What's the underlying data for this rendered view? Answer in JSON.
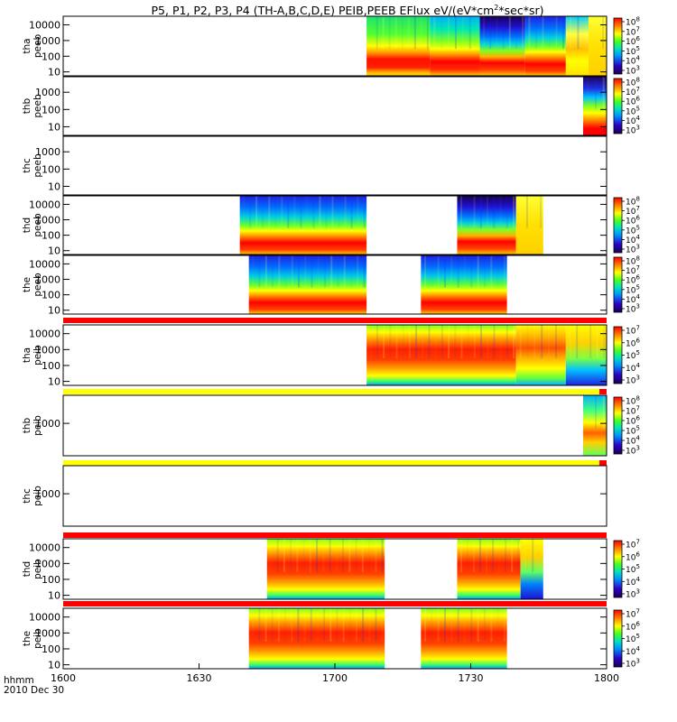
{
  "chart_data": {
    "type": "heatmap",
    "title": "P5, P1, P2, P3, P4 (TH-A,B,C,D,E) PEIB,PEEB EFlux eV/(eV*cm",
    "title_sup": "2",
    "title_end": "*sec*sr)",
    "x_label": "hhmm",
    "date_label": "2010 Dec 30",
    "x_ticks": [
      "1600",
      "1630",
      "1700",
      "1730",
      "1800"
    ],
    "x_tick_minutes": [
      0,
      30,
      60,
      90,
      120
    ],
    "x_range_minutes": [
      0,
      120
    ],
    "panels": [
      {
        "probe": "tha",
        "instrument": "peeb",
        "y_ticks": [
          "10000",
          "1000",
          "100",
          "10"
        ],
        "y_tick_values": [
          10000,
          1000,
          100,
          10
        ],
        "y_log_range": [
          0.75,
          4.55
        ],
        "colorbar": true,
        "cb_labels": [
          "8",
          "7",
          "6",
          "5",
          "4",
          "3"
        ],
        "status_bar": null,
        "blocks": [
          {
            "start": 67,
            "end": 81,
            "kind": "e_quiet"
          },
          {
            "start": 81,
            "end": 92,
            "kind": "e_green"
          },
          {
            "start": 92,
            "end": 102,
            "kind": "e_dense"
          },
          {
            "start": 102,
            "end": 111,
            "kind": "e_bluetop"
          },
          {
            "start": 111,
            "end": 116,
            "kind": "e_bright"
          },
          {
            "start": 116,
            "end": 120,
            "kind": "e_yellow"
          }
        ]
      },
      {
        "probe": "thb",
        "instrument": "peeb",
        "y_ticks": [
          "1000",
          "100",
          "10"
        ],
        "y_tick_values": [
          1000,
          100,
          10
        ],
        "y_log_range": [
          0.5,
          3.9
        ],
        "colorbar": true,
        "cb_labels": [
          "8",
          "7",
          "6",
          "5",
          "4",
          "3"
        ],
        "status_bar": null,
        "blocks": [
          {
            "start": 172,
            "end": 178,
            "kind": "e_edge"
          }
        ]
      },
      {
        "probe": "thc",
        "instrument": "peeb",
        "y_ticks": [
          "1000",
          "100",
          "10"
        ],
        "y_tick_values": [
          1000,
          100,
          10
        ],
        "y_log_range": [
          0.5,
          3.9
        ],
        "colorbar": false,
        "cb_labels": [],
        "status_bar": null,
        "blocks": []
      },
      {
        "probe": "thd",
        "instrument": "peeb",
        "y_ticks": [
          "10000",
          "1000",
          "100",
          "10"
        ],
        "y_tick_values": [
          10000,
          1000,
          100,
          10
        ],
        "y_log_range": [
          0.75,
          4.55
        ],
        "colorbar": true,
        "cb_labels": [
          "8",
          "7",
          "6",
          "5",
          "4",
          "3"
        ],
        "status_bar": null,
        "blocks": [
          {
            "start": 39,
            "end": 67,
            "kind": "e_bluetop"
          },
          {
            "start": 87,
            "end": 100,
            "kind": "e_dense"
          },
          {
            "start": 100,
            "end": 106,
            "kind": "e_yellow"
          }
        ]
      },
      {
        "probe": "the",
        "instrument": "peeb",
        "y_ticks": [
          "10000",
          "1000",
          "100",
          "10"
        ],
        "y_tick_values": [
          10000,
          1000,
          100,
          10
        ],
        "y_log_range": [
          0.75,
          4.55
        ],
        "colorbar": true,
        "cb_labels": [
          "8",
          "7",
          "6",
          "5",
          "4",
          "3"
        ],
        "status_bar": null,
        "blocks": [
          {
            "start": 41,
            "end": 67,
            "kind": "e_bluetop"
          },
          {
            "start": 79,
            "end": 98,
            "kind": "e_bluetop"
          }
        ]
      },
      {
        "probe": "tha",
        "instrument": "peib",
        "y_ticks": [
          "10000",
          "1000",
          "100",
          "10"
        ],
        "y_tick_values": [
          10000,
          1000,
          100,
          10
        ],
        "y_log_range": [
          0.75,
          4.55
        ],
        "colorbar": true,
        "cb_labels": [
          "7",
          "6",
          "5",
          "4",
          "3"
        ],
        "status_bar": "red",
        "blocks": [
          {
            "start": 67,
            "end": 100,
            "kind": "i_warm"
          },
          {
            "start": 100,
            "end": 111,
            "kind": "i_green"
          },
          {
            "start": 111,
            "end": 120,
            "kind": "i_yellow"
          }
        ]
      },
      {
        "probe": "thb",
        "instrument": "peib",
        "y_ticks": [
          "1000"
        ],
        "y_tick_values": [
          1000
        ],
        "y_log_range": [
          1.5,
          4.3
        ],
        "colorbar": true,
        "cb_labels": [
          "8",
          "7",
          "6",
          "5",
          "4",
          "3"
        ],
        "status_bar": "yellow",
        "blocks": [
          {
            "start": 172,
            "end": 178,
            "kind": "i_edge"
          }
        ]
      },
      {
        "probe": "thc",
        "instrument": "peib",
        "y_ticks": [
          "1000"
        ],
        "y_tick_values": [
          1000
        ],
        "y_log_range": [
          1.5,
          4.3
        ],
        "colorbar": false,
        "cb_labels": [],
        "status_bar": "yellow",
        "blocks": []
      },
      {
        "probe": "thd",
        "instrument": "peib",
        "y_ticks": [
          "10000",
          "1000",
          "100",
          "10"
        ],
        "y_tick_values": [
          10000,
          1000,
          100,
          10
        ],
        "y_log_range": [
          0.75,
          4.55
        ],
        "colorbar": true,
        "cb_labels": [
          "7",
          "6",
          "5",
          "4",
          "3"
        ],
        "status_bar": "red",
        "blocks": [
          {
            "start": 45,
            "end": 71,
            "kind": "i_warm"
          },
          {
            "start": 87,
            "end": 101,
            "kind": "i_warm"
          },
          {
            "start": 101,
            "end": 106,
            "kind": "i_blue_low"
          }
        ]
      },
      {
        "probe": "the",
        "instrument": "peib",
        "y_ticks": [
          "10000",
          "1000",
          "100",
          "10"
        ],
        "y_tick_values": [
          10000,
          1000,
          100,
          10
        ],
        "y_log_range": [
          0.75,
          4.55
        ],
        "colorbar": true,
        "cb_labels": [
          "7",
          "6",
          "5",
          "4",
          "3"
        ],
        "status_bar": "red",
        "blocks": [
          {
            "start": 41,
            "end": 71,
            "kind": "i_warm"
          },
          {
            "start": 79,
            "end": 98,
            "kind": "i_warm"
          }
        ]
      }
    ]
  }
}
